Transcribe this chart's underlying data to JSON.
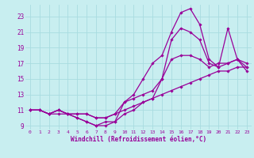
{
  "bg_color": "#c8eef0",
  "grid_color": "#a8dce0",
  "line_color": "#990099",
  "xlabel": "Windchill (Refroidissement éolien,°C)",
  "xlim": [
    -0.5,
    23.5
  ],
  "ylim": [
    8.5,
    24.5
  ],
  "yticks": [
    9,
    11,
    13,
    15,
    17,
    19,
    21,
    23
  ],
  "xticks": [
    0,
    1,
    2,
    3,
    4,
    5,
    6,
    7,
    8,
    9,
    10,
    11,
    12,
    13,
    14,
    15,
    16,
    17,
    18,
    19,
    20,
    21,
    22,
    23
  ],
  "series": [
    {
      "x": [
        0,
        1,
        2,
        3,
        4,
        5,
        6,
        7,
        8,
        9,
        10,
        11,
        12,
        13,
        14,
        15,
        16,
        17,
        18,
        19,
        20,
        21,
        22,
        23
      ],
      "y": [
        11,
        11,
        10.5,
        11,
        10.5,
        10.5,
        10.5,
        10,
        10,
        10.5,
        11,
        11.5,
        12,
        12.5,
        13,
        13.5,
        14,
        14.5,
        15,
        15.5,
        16,
        16,
        16.5,
        16.5
      ]
    },
    {
      "x": [
        0,
        1,
        2,
        3,
        4,
        5,
        6,
        7,
        8,
        9,
        10,
        11,
        12,
        13,
        14,
        15,
        16,
        17,
        18,
        19,
        20,
        21,
        22,
        23
      ],
      "y": [
        11,
        11,
        10.5,
        11,
        10.5,
        10.5,
        10.5,
        10,
        10,
        10.5,
        12,
        12.5,
        13,
        13.5,
        15,
        17.5,
        18,
        18,
        17.5,
        16.5,
        17,
        17,
        17.5,
        17
      ]
    },
    {
      "x": [
        0,
        1,
        2,
        3,
        4,
        5,
        6,
        7,
        8,
        9,
        10,
        11,
        12,
        13,
        14,
        15,
        16,
        17,
        18,
        19,
        20,
        21,
        22,
        23
      ],
      "y": [
        11,
        11,
        10.5,
        10.5,
        10.5,
        10,
        9.5,
        9,
        9,
        9.5,
        10.5,
        11,
        12,
        12.5,
        15,
        20,
        21.5,
        21,
        20,
        17,
        16.5,
        17,
        17.5,
        16.5
      ]
    },
    {
      "x": [
        0,
        1,
        2,
        3,
        4,
        5,
        6,
        7,
        8,
        9,
        10,
        11,
        12,
        13,
        14,
        15,
        16,
        17,
        18,
        19,
        20,
        21,
        22,
        23
      ],
      "y": [
        11,
        11,
        10.5,
        11,
        10.5,
        10,
        9.5,
        9,
        9.5,
        9.5,
        12,
        13,
        15,
        17,
        18,
        21,
        23.5,
        24,
        22,
        17.5,
        16.5,
        21.5,
        17.5,
        16
      ]
    }
  ]
}
